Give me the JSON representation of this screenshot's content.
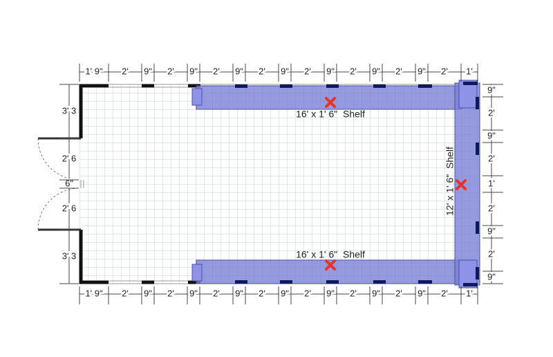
{
  "dimensions": {
    "top": [
      "1' 9\"",
      "2'",
      "9\"",
      "2'",
      "9\"",
      "2'",
      "9\"",
      "2'",
      "9\"",
      "2'",
      "9\"",
      "2'",
      "9\"",
      "2'",
      "9\"",
      "2'",
      "1'"
    ],
    "bottom": [
      "1' 9\"",
      "2'",
      "9\"",
      "2'",
      "9\"",
      "2'",
      "9\"",
      "2'",
      "9\"",
      "2'",
      "9\"",
      "2'",
      "9\"",
      "2'",
      "9\"",
      "2'",
      "1'"
    ],
    "right": [
      "9\"",
      "2'",
      "9\"",
      "2'",
      "1'",
      "2'",
      "9\"",
      "2'",
      "9\""
    ],
    "left": [
      "3' 3",
      "2' 6",
      "6\"",
      "2' 6",
      "3' 3"
    ]
  },
  "shelves": [
    {
      "label": "16' x 1' 6\"  Shelf"
    },
    {
      "label": "12' x 1' 6\"  Shelf"
    },
    {
      "label": "16' x 1' 6\"  Shelf"
    }
  ]
}
